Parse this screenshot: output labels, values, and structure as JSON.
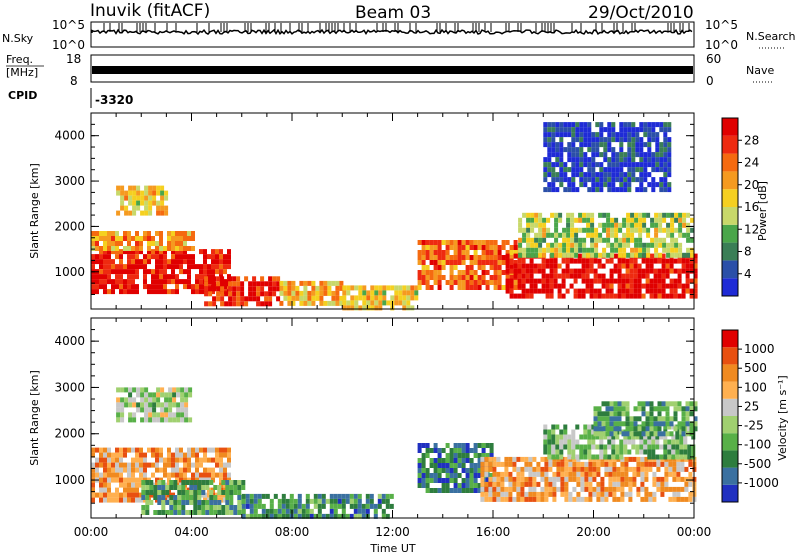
{
  "header": {
    "station": "Inuvik (fitACF)",
    "beam": "Beam 03",
    "date": "29/Oct/2010"
  },
  "top_panels": {
    "nsky_label": "N.Sky",
    "nsky_ticks": [
      "10^5",
      "10^0"
    ],
    "nsearch_label": "N.Search",
    "nsearch_ticks": [
      "10^5",
      "10^0"
    ],
    "freq_label_1": "Freq.",
    "freq_label_2": "[MHz]",
    "freq_ticks": [
      "18",
      "8"
    ],
    "nave_label": "Nave",
    "nave_ticks": [
      "60",
      "0"
    ],
    "cpid_label": "CPID",
    "cpid_value": "-3320"
  },
  "colors": {
    "power_scale": [
      "#1f2bd6",
      "#2b4fa8",
      "#3a7e56",
      "#4aa64a",
      "#c8d86a",
      "#f5d020",
      "#f59a20",
      "#f56a10",
      "#ee2a10",
      "#e00000"
    ],
    "velocity_scale": [
      "#2030c0",
      "#3a70a0",
      "#2e7d3e",
      "#58b048",
      "#a0d070",
      "#c8c8c8",
      "#ffb050",
      "#f08a20",
      "#e85010",
      "#e00000"
    ]
  },
  "chart_data": [
    {
      "type": "heatmap",
      "xlabel": "Time UT",
      "ylabel": "Slant Range [km]",
      "x_ticks": [
        "00:00",
        "04:00",
        "08:00",
        "12:00",
        "16:00",
        "20:00",
        "00:00"
      ],
      "y_ticks": [
        "1000",
        "2000",
        "3000",
        "4000"
      ],
      "xlim_hours": [
        0,
        24
      ],
      "ylim_km": [
        180,
        4500
      ],
      "colorbar": {
        "label": "Power [dB]",
        "ticks": [
          "4",
          "8",
          "12",
          "16",
          "20",
          "24",
          "28"
        ],
        "range": [
          0,
          30
        ]
      },
      "regions": [
        {
          "t0": 0.0,
          "t1": 5.5,
          "r0": 600,
          "r1": 1500,
          "level": 0.92
        },
        {
          "t0": 0.0,
          "t1": 4.0,
          "r0": 1500,
          "r1": 1900,
          "level": 0.65
        },
        {
          "t0": 4.5,
          "t1": 7.5,
          "r0": 250,
          "r1": 900,
          "level": 0.9
        },
        {
          "t0": 7.5,
          "t1": 10.0,
          "r0": 300,
          "r1": 800,
          "level": 0.6
        },
        {
          "t0": 10.0,
          "t1": 13.0,
          "r0": 250,
          "r1": 700,
          "level": 0.55
        },
        {
          "t0": 13.0,
          "t1": 17.0,
          "r0": 700,
          "r1": 1700,
          "level": 0.75
        },
        {
          "t0": 16.5,
          "t1": 24.0,
          "r0": 500,
          "r1": 1400,
          "level": 0.95
        },
        {
          "t0": 17.0,
          "t1": 24.0,
          "r0": 1400,
          "r1": 2300,
          "level": 0.45
        },
        {
          "t0": 1.0,
          "t1": 3.0,
          "r0": 2300,
          "r1": 2900,
          "level": 0.55
        },
        {
          "t0": 18.0,
          "t1": 23.0,
          "r0": 2800,
          "r1": 4300,
          "level": 0.1
        }
      ]
    },
    {
      "type": "heatmap",
      "xlabel": "Time UT",
      "ylabel": "Slant Range [km]",
      "x_ticks": [
        "00:00",
        "04:00",
        "08:00",
        "12:00",
        "16:00",
        "20:00",
        "00:00"
      ],
      "y_ticks": [
        "1000",
        "2000",
        "3000",
        "4000"
      ],
      "xlim_hours": [
        0,
        24
      ],
      "ylim_km": [
        180,
        4500
      ],
      "colorbar": {
        "label": "Velocity [m s⁻¹]",
        "ticks": [
          "1000",
          "500",
          "100",
          "25",
          "-25",
          "-100",
          "-500",
          "-1000"
        ],
        "range": [
          -1000,
          1000
        ]
      },
      "regions": [
        {
          "t0": 0.0,
          "t1": 5.5,
          "r0": 600,
          "r1": 1700,
          "level": 0.7
        },
        {
          "t0": 2.0,
          "t1": 6.0,
          "r0": 300,
          "r1": 1000,
          "level": 0.3
        },
        {
          "t0": 6.0,
          "t1": 12.0,
          "r0": 250,
          "r1": 700,
          "level": 0.25
        },
        {
          "t0": 13.0,
          "t1": 16.0,
          "r0": 800,
          "r1": 1800,
          "level": 0.2
        },
        {
          "t0": 15.5,
          "t1": 24.0,
          "r0": 600,
          "r1": 1500,
          "level": 0.7
        },
        {
          "t0": 18.0,
          "t1": 24.0,
          "r0": 1500,
          "r1": 2200,
          "level": 0.4
        },
        {
          "t0": 1.0,
          "t1": 4.0,
          "r0": 2300,
          "r1": 3000,
          "level": 0.45
        },
        {
          "t0": 20.0,
          "t1": 24.0,
          "r0": 2000,
          "r1": 2700,
          "level": 0.3
        }
      ]
    }
  ]
}
